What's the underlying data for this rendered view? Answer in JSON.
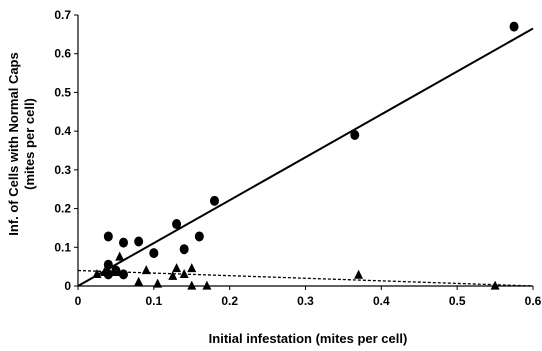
{
  "chart_data": {
    "type": "scatter",
    "title": "",
    "xlabel": "Initial infestation (mites per cell)",
    "ylabel_line1": "Inf. of Cells with Normal Caps",
    "ylabel_line2": "(mites per cell)",
    "xlim": [
      0,
      0.6
    ],
    "ylim": [
      0,
      0.7
    ],
    "x_ticks": [
      "0",
      "0.1",
      "0.2",
      "0.3",
      "0.4",
      "0.5",
      "0.6"
    ],
    "y_ticks": [
      "0",
      "0.1",
      "0.2",
      "0.3",
      "0.4",
      "0.5",
      "0.6",
      "0.7"
    ],
    "grid": false,
    "legend": "none",
    "series": [
      {
        "marker": "circle",
        "color": "#000000",
        "points": [
          [
            0.04,
            0.128
          ],
          [
            0.04,
            0.055
          ],
          [
            0.04,
            0.03
          ],
          [
            0.05,
            0.04
          ],
          [
            0.06,
            0.112
          ],
          [
            0.06,
            0.03
          ],
          [
            0.08,
            0.115
          ],
          [
            0.1,
            0.085
          ],
          [
            0.13,
            0.16
          ],
          [
            0.14,
            0.095
          ],
          [
            0.16,
            0.128
          ],
          [
            0.18,
            0.22
          ],
          [
            0.365,
            0.39
          ],
          [
            0.575,
            0.67
          ]
        ],
        "fit": {
          "style": "solid",
          "x": [
            0,
            0.6
          ],
          "y": [
            0,
            0.665
          ]
        }
      },
      {
        "marker": "triangle",
        "color": "#000000",
        "points": [
          [
            0.025,
            0.03
          ],
          [
            0.035,
            0.035
          ],
          [
            0.05,
            0.035
          ],
          [
            0.055,
            0.075
          ],
          [
            0.08,
            0.01
          ],
          [
            0.09,
            0.04
          ],
          [
            0.105,
            0.005
          ],
          [
            0.125,
            0.025
          ],
          [
            0.13,
            0.045
          ],
          [
            0.14,
            0.03
          ],
          [
            0.15,
            0.045
          ],
          [
            0.15,
            0.0
          ],
          [
            0.17,
            0.0
          ],
          [
            0.37,
            0.028
          ],
          [
            0.55,
            0.0
          ]
        ],
        "fit": {
          "style": "dashed",
          "x": [
            0,
            0.6
          ],
          "y": [
            0.04,
            0.0
          ]
        }
      }
    ]
  }
}
